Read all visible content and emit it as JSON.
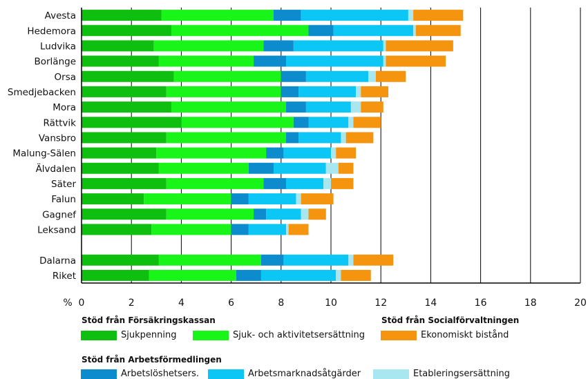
{
  "chart_data": {
    "type": "bar",
    "orientation": "horizontal",
    "stacked": true,
    "x_unit_label": "%",
    "xlim": [
      0,
      20
    ],
    "x_ticks": [
      0,
      2,
      4,
      6,
      8,
      10,
      12,
      14,
      16,
      18,
      20
    ],
    "grid": "vertical",
    "categories": [
      "Avesta",
      "Hedemora",
      "Ludvika",
      "Borlänge",
      "Orsa",
      "Smedjebacken",
      "Mora",
      "Rättvik",
      "Vansbro",
      "Malung-Sälen",
      "Älvdalen",
      "Säter",
      "Falun",
      "Gagnef",
      "Leksand",
      "",
      "Dalarna",
      "Riket"
    ],
    "series": [
      {
        "name": "Sjukpenning",
        "color": "#0fbf0f",
        "values": [
          3.2,
          3.6,
          2.9,
          3.1,
          3.7,
          3.4,
          3.6,
          4.0,
          3.4,
          3.0,
          3.1,
          3.4,
          2.5,
          3.4,
          2.8,
          null,
          3.1,
          2.7
        ]
      },
      {
        "name": "Sjuk- och aktivitetsersättning",
        "color": "#19f519",
        "values": [
          4.5,
          5.5,
          4.4,
          3.8,
          4.3,
          4.6,
          4.6,
          4.5,
          4.8,
          4.4,
          3.6,
          3.9,
          3.5,
          3.5,
          3.2,
          null,
          4.1,
          3.5
        ]
      },
      {
        "name": "Arbetslöshetsers.",
        "color": "#0c8ccc",
        "values": [
          1.1,
          1.0,
          1.2,
          1.3,
          1.0,
          0.7,
          0.8,
          0.6,
          0.5,
          0.7,
          1.0,
          0.9,
          0.7,
          0.5,
          0.7,
          null,
          0.9,
          1.0
        ]
      },
      {
        "name": "Arbetsmarknadsåtgärder",
        "color": "#0cc6f5",
        "values": [
          4.3,
          3.2,
          3.6,
          3.9,
          2.5,
          2.3,
          1.8,
          1.6,
          1.7,
          1.9,
          2.1,
          1.5,
          1.9,
          1.4,
          1.5,
          null,
          2.6,
          3.0
        ]
      },
      {
        "name": "Etableringsersättning",
        "color": "#a8e6f0",
        "values": [
          0.2,
          0.1,
          0.1,
          0.1,
          0.3,
          0.2,
          0.4,
          0.2,
          0.2,
          0.2,
          0.5,
          0.3,
          0.2,
          0.3,
          0.1,
          null,
          0.2,
          0.2
        ]
      },
      {
        "name": "Ekonomiskt bistånd",
        "color": "#f5950f",
        "values": [
          2.0,
          1.8,
          2.7,
          2.4,
          1.2,
          1.1,
          0.9,
          1.1,
          1.1,
          0.8,
          0.6,
          0.9,
          1.3,
          0.7,
          0.8,
          null,
          1.6,
          1.2
        ]
      }
    ],
    "legend_groups": [
      {
        "title": "Stöd från Försäkringskassan",
        "series_indices": [
          0,
          1
        ]
      },
      {
        "title": "Stöd från Socialförvaltningen",
        "series_indices": [
          5
        ]
      },
      {
        "title": "Stöd från Arbetsförmedlingen",
        "series_indices": [
          2,
          3,
          4
        ]
      }
    ]
  }
}
